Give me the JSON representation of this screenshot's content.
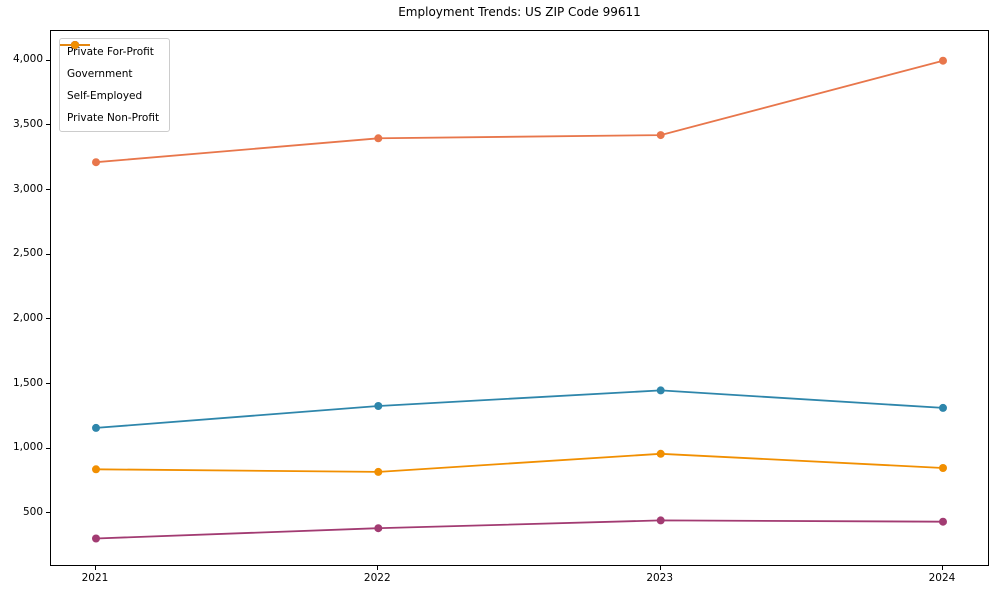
{
  "chart_data": {
    "type": "line",
    "title": "Employment Trends: US ZIP Code 99611",
    "x": [
      "2021",
      "2022",
      "2023",
      "2024"
    ],
    "series": [
      {
        "name": "Private For-Profit",
        "color": "#E8764B",
        "values": [
          3215,
          3400,
          3425,
          4000
        ]
      },
      {
        "name": "Government",
        "color": "#2E86AB",
        "values": [
          1160,
          1330,
          1450,
          1315
        ]
      },
      {
        "name": "Self-Employed",
        "color": "#A23B72",
        "values": [
          305,
          385,
          445,
          435
        ]
      },
      {
        "name": "Private Non-Profit",
        "color": "#F18F01",
        "values": [
          840,
          820,
          960,
          850
        ]
      }
    ],
    "ylim": [
      100,
      4230
    ],
    "yticks": [
      500,
      1000,
      1500,
      2000,
      2500,
      3000,
      3500,
      4000
    ],
    "ytick_labels": [
      "500",
      "1,000",
      "1,500",
      "2,000",
      "2,500",
      "3,000",
      "3,500",
      "4,000"
    ],
    "xtick_labels": [
      "2021",
      "2022",
      "2023",
      "2024"
    ],
    "legend_position": "upper left",
    "grid": false
  }
}
